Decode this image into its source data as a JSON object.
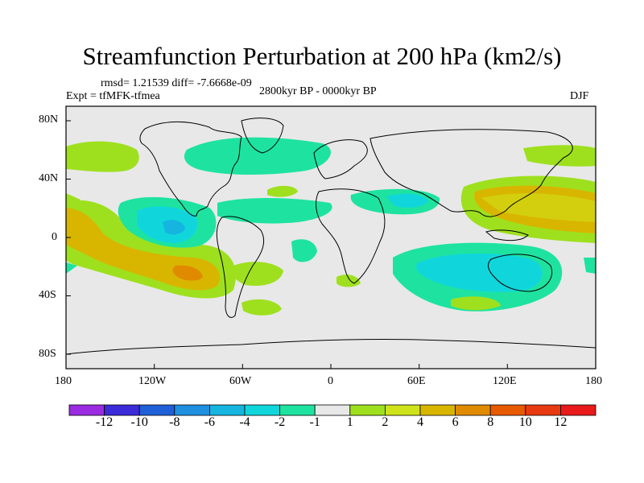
{
  "chart_data": {
    "type": "heatmap",
    "title": "Streamfunction Perturbation at 200 hPa (km2/s)",
    "stats_text": "rmsd= 1.21539 diff= -7.6668e-09",
    "experiment_text": "Expt = tfMFK-tfmea",
    "period_text": "2800kyr BP - 0000kyr BP",
    "season": "DJF",
    "x_tick_labels": [
      "180",
      "120W",
      "60W",
      "0",
      "60E",
      "120E",
      "180"
    ],
    "y_tick_labels": [
      "80N",
      "40N",
      "0",
      "40S",
      "80S"
    ],
    "colorbar": {
      "labels": [
        "-12",
        "-10",
        "-8",
        "-6",
        "-4",
        "-2",
        "-1",
        "1",
        "2",
        "4",
        "6",
        "8",
        "10",
        "12"
      ],
      "colors": [
        "#9a2be0",
        "#3b2bd8",
        "#1f5fd8",
        "#1f8fe0",
        "#16b5e0",
        "#10d6dc",
        "#1ee3a0",
        "#e8e8e8",
        "#9ee01e",
        "#cfe31a",
        "#d8b600",
        "#e08a00",
        "#e85a00",
        "#e83a10",
        "#e81a1a"
      ]
    },
    "features": [
      {
        "region": "Eastern North Pacific (~160W, 5N-35S)",
        "value": 4
      },
      {
        "region": "Off Peru (~105W, 25S)",
        "value": 6
      },
      {
        "region": "Eastern tropical Pacific (~115W, 5N)",
        "value": -4
      },
      {
        "region": "North Atlantic / Greenland (~60W-30W, 55N)",
        "value": -2
      },
      {
        "region": "South Indian Ocean / Australia (~90E-120E, 30S)",
        "value": -4
      },
      {
        "region": "Western tropical Pacific (~100E-150E, 15N)",
        "value": 4
      },
      {
        "region": "North Pacific (~165W, 55N)",
        "value": 2
      }
    ]
  }
}
